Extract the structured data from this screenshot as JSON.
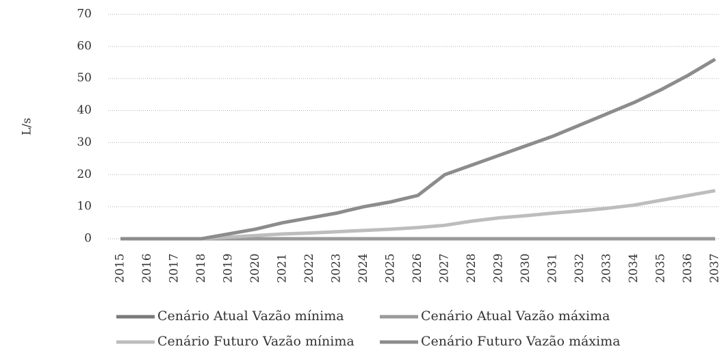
{
  "chart_data": {
    "type": "line",
    "ylabel": "L/s",
    "categories": [
      "2015",
      "2016",
      "2017",
      "2018",
      "2019",
      "2020",
      "2021",
      "2022",
      "2023",
      "2024",
      "2025",
      "2026",
      "2027",
      "2028",
      "2029",
      "2030",
      "2031",
      "2032",
      "2033",
      "2034",
      "2035",
      "2036",
      "2037"
    ],
    "series": [
      {
        "name": "Cenário Atual Vazão mínima",
        "color": "#7a7a7a",
        "values": [
          0,
          0,
          0,
          0,
          0,
          0,
          0,
          0,
          0,
          0,
          0,
          0,
          0,
          0,
          0,
          0,
          0,
          0,
          0,
          0,
          0,
          0,
          0
        ]
      },
      {
        "name": "Cenário Atual Vazão máxima",
        "color": "#9a9a9a",
        "values": [
          0,
          0,
          0,
          0,
          0,
          0,
          0,
          0,
          0,
          0,
          0,
          0,
          0,
          0,
          0,
          0,
          0,
          0,
          0,
          0,
          0,
          0,
          0
        ]
      },
      {
        "name": "Cenário Futuro Vazão mínima",
        "color": "#bdbdbd",
        "values": [
          0,
          0,
          0,
          0,
          0.5,
          1,
          1.5,
          1.8,
          2.2,
          2.6,
          3,
          3.5,
          4.2,
          5.5,
          6.5,
          7.2,
          8,
          8.7,
          9.5,
          10.5,
          12,
          13.5,
          15
        ]
      },
      {
        "name": "Cenário Futuro Vazão máxima",
        "color": "#8c8c8c",
        "values": [
          0,
          0,
          0,
          0,
          1.5,
          3,
          5,
          6.5,
          8,
          10,
          11.5,
          13.5,
          20,
          23,
          26,
          29,
          32,
          35.5,
          39,
          42.5,
          46.5,
          51,
          56
        ]
      }
    ],
    "ylim": [
      0,
      70
    ],
    "yticks": [
      0,
      10,
      20,
      30,
      40,
      50,
      60,
      70
    ],
    "grid": true
  }
}
